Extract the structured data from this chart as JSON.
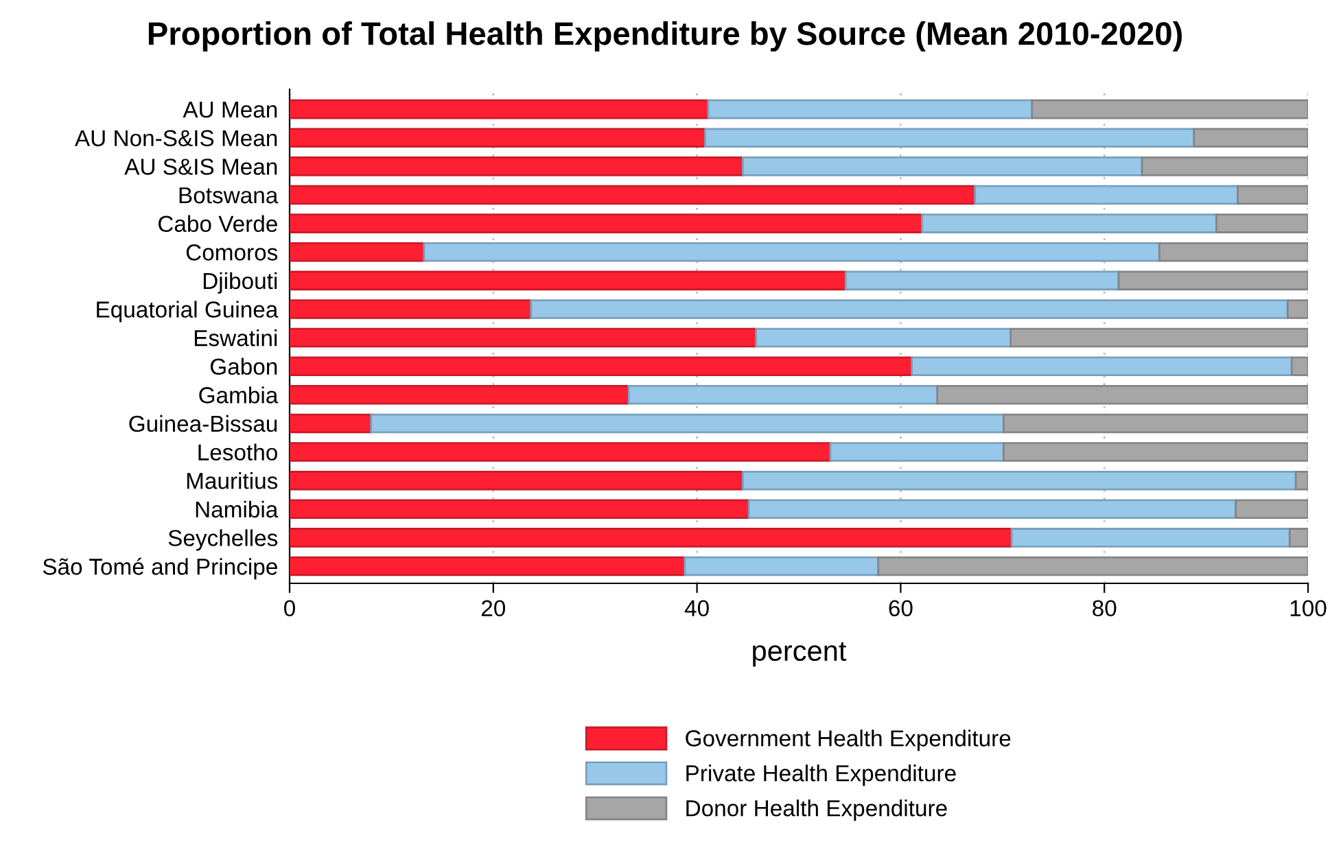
{
  "chart_data": {
    "type": "bar",
    "orientation": "horizontal",
    "stacked": true,
    "title": "Proportion of Total Health Expenditure by Source (Mean 2010-2020)",
    "xlabel": "percent",
    "categories": [
      "AU Mean",
      "AU Non-S&IS Mean",
      "AU S&IS Mean",
      "Botswana",
      "Cabo Verde",
      "Comoros",
      "Djibouti",
      "Equatorial Guinea",
      "Eswatini",
      "Gabon",
      "Gambia",
      "Guinea-Bissau",
      "Lesotho",
      "Mauritius",
      "Namibia",
      "Seychelles",
      "São Tomé and Principe"
    ],
    "series": [
      {
        "name": "Government Health Expenditure",
        "color": "#ff1f33",
        "values": [
          41.1,
          40.8,
          44.5,
          67.3,
          62.1,
          13.2,
          54.6,
          23.7,
          45.8,
          61.1,
          33.3,
          8.0,
          53.1,
          44.5,
          45.1,
          70.9,
          38.8
        ]
      },
      {
        "name": "Private Health Expenditure",
        "color": "#97c8ea",
        "values": [
          31.8,
          48.0,
          39.2,
          25.8,
          28.9,
          72.2,
          26.8,
          74.3,
          25.0,
          37.3,
          30.3,
          62.1,
          17.0,
          54.3,
          47.8,
          27.3,
          19.0
        ]
      },
      {
        "name": "Donor Health Expenditure",
        "color": "#a6a6a6",
        "values": [
          27.1,
          11.2,
          16.3,
          6.9,
          9.0,
          14.6,
          18.6,
          2.0,
          29.2,
          1.6,
          36.4,
          29.9,
          29.9,
          1.2,
          7.1,
          1.8,
          42.2
        ]
      }
    ],
    "xlim": [
      0,
      100
    ],
    "xticks": [
      0,
      20,
      40,
      60,
      80,
      100
    ],
    "grid": "x",
    "legend": "bottom"
  }
}
